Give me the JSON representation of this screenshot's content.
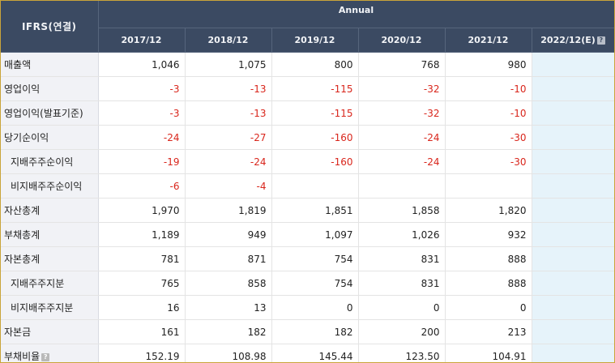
{
  "header": {
    "basis": "IFRS(연결)",
    "period_group": "Annual",
    "years": [
      "2017/12",
      "2018/12",
      "2019/12",
      "2020/12",
      "2021/12",
      "2022/12(E)"
    ],
    "help_glyph": "?"
  },
  "rows": [
    {
      "label": "매출액",
      "indent": false,
      "help": false,
      "values": [
        "1,046",
        "1,075",
        "800",
        "768",
        "980",
        ""
      ]
    },
    {
      "label": "영업이익",
      "indent": false,
      "help": false,
      "values": [
        "-3",
        "-13",
        "-115",
        "-32",
        "-10",
        ""
      ]
    },
    {
      "label": "영업이익(발표기준)",
      "indent": false,
      "help": false,
      "values": [
        "-3",
        "-13",
        "-115",
        "-32",
        "-10",
        ""
      ]
    },
    {
      "label": "당기순이익",
      "indent": false,
      "help": false,
      "values": [
        "-24",
        "-27",
        "-160",
        "-24",
        "-30",
        ""
      ]
    },
    {
      "label": "지배주주순이익",
      "indent": true,
      "help": false,
      "values": [
        "-19",
        "-24",
        "-160",
        "-24",
        "-30",
        ""
      ]
    },
    {
      "label": "비지배주주순이익",
      "indent": true,
      "help": false,
      "values": [
        "-6",
        "-4",
        "",
        "",
        "",
        ""
      ]
    },
    {
      "label": "자산총계",
      "indent": false,
      "help": false,
      "values": [
        "1,970",
        "1,819",
        "1,851",
        "1,858",
        "1,820",
        ""
      ]
    },
    {
      "label": "부채총계",
      "indent": false,
      "help": false,
      "values": [
        "1,189",
        "949",
        "1,097",
        "1,026",
        "932",
        ""
      ]
    },
    {
      "label": "자본총계",
      "indent": false,
      "help": false,
      "values": [
        "781",
        "871",
        "754",
        "831",
        "888",
        ""
      ]
    },
    {
      "label": "지배주주지분",
      "indent": true,
      "help": false,
      "values": [
        "765",
        "858",
        "754",
        "831",
        "888",
        ""
      ]
    },
    {
      "label": "비지배주주지분",
      "indent": true,
      "help": false,
      "values": [
        "16",
        "13",
        "0",
        "0",
        "0",
        ""
      ]
    },
    {
      "label": "자본금",
      "indent": false,
      "help": false,
      "values": [
        "161",
        "182",
        "182",
        "200",
        "213",
        ""
      ]
    },
    {
      "label": "부채비율",
      "indent": false,
      "help": true,
      "values": [
        "152.19",
        "108.98",
        "145.44",
        "123.50",
        "104.91",
        ""
      ]
    }
  ],
  "colors": {
    "header_bg": "#3b4a62",
    "label_bg": "#f1f2f6",
    "estimate_bg": "#e6f3fa",
    "negative": "#d9261c",
    "frame": "#c9a43a"
  }
}
